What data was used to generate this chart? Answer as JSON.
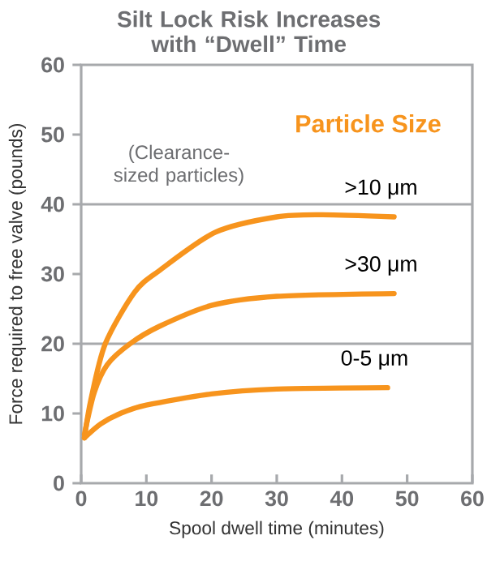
{
  "chart_data": {
    "type": "line",
    "title": "Silt Lock Risk Increases with “Dwell” Time",
    "xlabel": "Spool dwell time (minutes)",
    "ylabel": "Force required to free valve (pounds)",
    "annotations": [
      "Particle Size",
      "(Clearance-sized particles)"
    ],
    "xlim": [
      0,
      60
    ],
    "ylim": [
      0,
      60
    ],
    "xticks": [
      0,
      10,
      20,
      30,
      40,
      50,
      60
    ],
    "yticks": [
      0,
      10,
      20,
      30,
      40,
      50,
      60
    ],
    "legend": false,
    "marker": "none",
    "line_style": "solid",
    "ref_lines": [
      {
        "axis": "y",
        "value": 20,
        "color": "#a7a9ac"
      },
      {
        "axis": "y",
        "value": 40,
        "color": "#a7a9ac"
      }
    ],
    "series": [
      {
        "name": ">10 μm",
        "color": "#f7941d",
        "x": [
          0.5,
          1.5,
          3.7,
          8.2,
          12,
          20.6,
          30,
          37,
          48
        ],
        "values": [
          6.5,
          12,
          20,
          27.4,
          30.5,
          36,
          38.2,
          38.5,
          38.2
        ]
      },
      {
        "name": ">30 μm",
        "color": "#f7941d",
        "x": [
          0.5,
          2,
          4,
          7.5,
          12,
          20,
          30,
          48
        ],
        "values": [
          7,
          13,
          17,
          20,
          22.5,
          25.5,
          26.8,
          27.2
        ]
      },
      {
        "name": "0-5 μm",
        "color": "#f7941d",
        "x": [
          0.5,
          3,
          6,
          10,
          20,
          30,
          47
        ],
        "values": [
          6.5,
          8.5,
          10,
          11.2,
          12.8,
          13.5,
          13.7
        ]
      }
    ]
  }
}
